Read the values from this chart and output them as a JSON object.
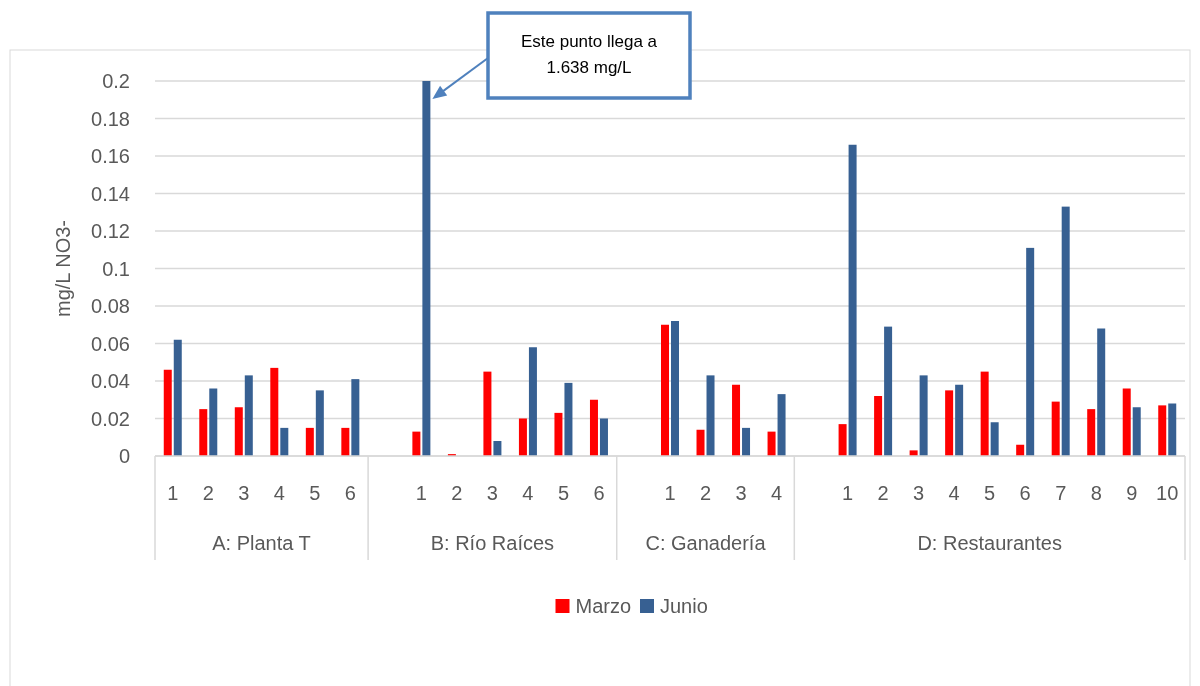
{
  "chart_data": {
    "type": "bar",
    "ylabel": "mg/L NO3-",
    "categories": [
      "1",
      "2",
      "3",
      "4",
      "5",
      "6",
      null,
      "1",
      "2",
      "3",
      "4",
      "5",
      "6",
      null,
      "1",
      "2",
      "3",
      "4",
      null,
      "1",
      "2",
      "3",
      "4",
      "5",
      "6",
      "7",
      "8",
      "9",
      "10"
    ],
    "series": [
      {
        "name": "Marzo",
        "color": "#ff0000",
        "values": [
          0.046,
          0.025,
          0.026,
          0.047,
          0.015,
          0.015,
          null,
          0.013,
          0.001,
          0.045,
          0.02,
          0.023,
          0.03,
          null,
          0.07,
          0.014,
          0.038,
          0.013,
          null,
          0.017,
          0.032,
          0.003,
          0.035,
          0.045,
          0.006,
          0.029,
          0.025,
          0.036,
          0.027
        ]
      },
      {
        "name": "Junio",
        "color": "#376092",
        "values": [
          0.062,
          0.036,
          0.043,
          0.015,
          0.035,
          0.041,
          null,
          0.2,
          null,
          0.008,
          0.058,
          0.039,
          0.02,
          null,
          0.072,
          0.043,
          0.015,
          0.033,
          null,
          0.166,
          0.069,
          0.043,
          0.038,
          0.018,
          0.111,
          0.133,
          0.068,
          0.026,
          0.028
        ]
      }
    ],
    "ylim": [
      0,
      0.2
    ],
    "yticks": [
      0,
      0.02,
      0.04,
      0.06,
      0.08,
      0.1,
      0.12,
      0.14,
      0.16,
      0.18,
      0.2
    ],
    "grid": "y",
    "legend": "bottom",
    "annotations": [
      "A: Planta T",
      "B: Río Raíces",
      "C: Ganadería",
      "D: Restaurantes",
      "Este punto llega a 1.638 mg/L"
    ]
  }
}
